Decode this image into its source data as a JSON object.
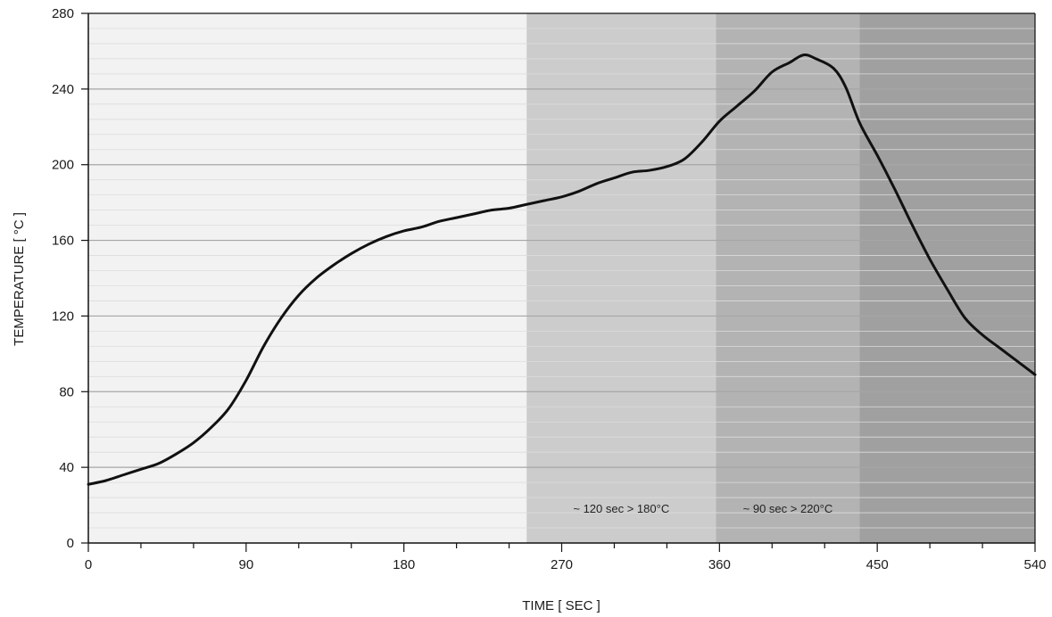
{
  "chart_data": {
    "type": "line",
    "title": "",
    "xlabel": "TIME [ SEC ]",
    "ylabel": "TEMPERATURE [ °C ]",
    "xlim": [
      0,
      540
    ],
    "ylim": [
      0,
      280
    ],
    "x_ticks": [
      0,
      90,
      180,
      270,
      360,
      450,
      540
    ],
    "y_ticks": [
      0,
      40,
      80,
      120,
      160,
      200,
      240,
      280
    ],
    "grid": true,
    "legend": "none",
    "zones": [
      {
        "start": 0,
        "end": 250,
        "color": "#f2f2f2",
        "label": ""
      },
      {
        "start": 250,
        "end": 358,
        "color": "#cccccc",
        "label": "~ 120 sec > 180°C"
      },
      {
        "start": 358,
        "end": 440,
        "color": "#b3b3b3",
        "label": "~ 90 sec > 220°C"
      },
      {
        "start": 440,
        "end": 540,
        "color": "#a0a0a0",
        "label": ""
      }
    ],
    "series": [
      {
        "color": "#111111",
        "points": [
          [
            0,
            31
          ],
          [
            10,
            33
          ],
          [
            20,
            36
          ],
          [
            30,
            39
          ],
          [
            40,
            42
          ],
          [
            50,
            47
          ],
          [
            60,
            53
          ],
          [
            70,
            61
          ],
          [
            80,
            71
          ],
          [
            90,
            86
          ],
          [
            100,
            104
          ],
          [
            110,
            119
          ],
          [
            120,
            131
          ],
          [
            130,
            140
          ],
          [
            140,
            147
          ],
          [
            150,
            153
          ],
          [
            160,
            158
          ],
          [
            170,
            162
          ],
          [
            180,
            165
          ],
          [
            190,
            167
          ],
          [
            200,
            170
          ],
          [
            210,
            172
          ],
          [
            220,
            174
          ],
          [
            230,
            176
          ],
          [
            240,
            177
          ],
          [
            250,
            179
          ],
          [
            260,
            181
          ],
          [
            270,
            183
          ],
          [
            280,
            186
          ],
          [
            290,
            190
          ],
          [
            300,
            193
          ],
          [
            310,
            196
          ],
          [
            320,
            197
          ],
          [
            330,
            199
          ],
          [
            340,
            203
          ],
          [
            350,
            212
          ],
          [
            360,
            223
          ],
          [
            370,
            231
          ],
          [
            380,
            239
          ],
          [
            390,
            249
          ],
          [
            400,
            254
          ],
          [
            408,
            258
          ],
          [
            415,
            256
          ],
          [
            425,
            251
          ],
          [
            432,
            241
          ],
          [
            440,
            222
          ],
          [
            450,
            205
          ],
          [
            460,
            187
          ],
          [
            470,
            168
          ],
          [
            480,
            150
          ],
          [
            490,
            134
          ],
          [
            500,
            119
          ],
          [
            510,
            110
          ],
          [
            520,
            103
          ],
          [
            530,
            96
          ],
          [
            540,
            89
          ]
        ]
      }
    ]
  }
}
